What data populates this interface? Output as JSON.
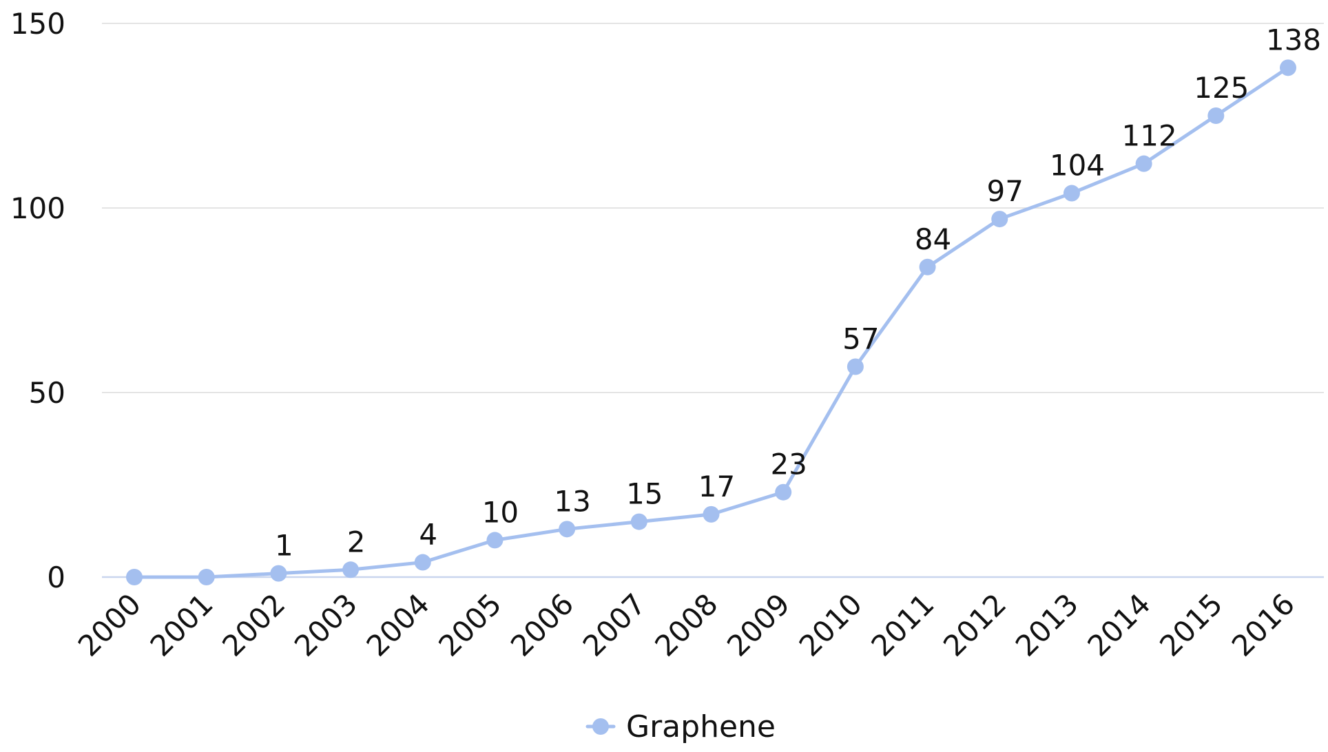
{
  "colors": {
    "series": "#a4bfef",
    "grid": "#e4e4e4",
    "baseline": "#c9d5ee",
    "text": "#111111"
  },
  "chart_data": {
    "type": "line",
    "title": "",
    "xlabel": "",
    "ylabel": "",
    "ylim": [
      0,
      150
    ],
    "yticks": [
      0,
      50,
      100,
      150
    ],
    "grid": true,
    "legend_position": "bottom-center",
    "x": [
      "2000",
      "2001",
      "2002",
      "2003",
      "2004",
      "2005",
      "2006",
      "2007",
      "2008",
      "2009",
      "2010",
      "2011",
      "2012",
      "2013",
      "2014",
      "2015",
      "2016"
    ],
    "series": [
      {
        "name": "Graphene",
        "values": [
          0,
          0,
          1,
          2,
          4,
          10,
          13,
          15,
          17,
          23,
          57,
          84,
          97,
          104,
          112,
          125,
          138
        ],
        "data_labels": [
          "",
          "",
          "1",
          "2",
          "4",
          "10",
          "13",
          "15",
          "17",
          "23",
          "57",
          "84",
          "97",
          "104",
          "112",
          "125",
          "138"
        ],
        "marker": "circle"
      }
    ]
  }
}
